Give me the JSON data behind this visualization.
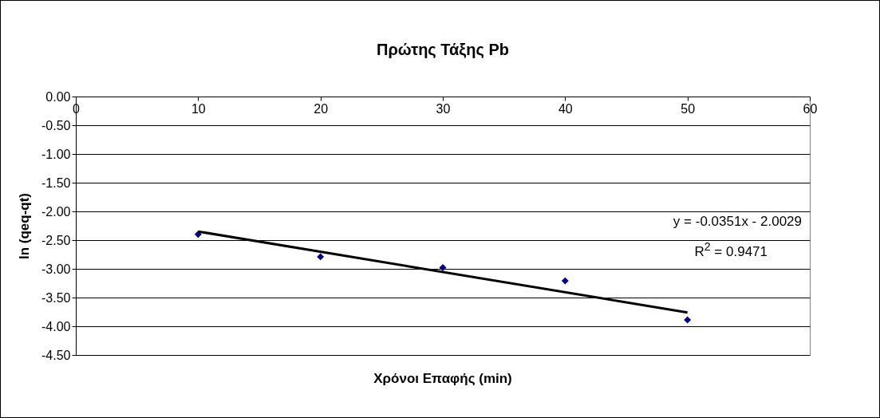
{
  "chart_data": {
    "type": "scatter",
    "title": "Πρώτης Τάξης Pb",
    "xlabel": "Χρόνοι Επαφής (min)",
    "ylabel": "ln (qeq-qt)",
    "x": [
      10,
      20,
      30,
      40,
      50
    ],
    "series": [
      {
        "color": "#000080",
        "marker": "diamond",
        "values": [
          -2.4,
          -2.79,
          -2.98,
          -3.21,
          -3.89
        ]
      },
      {
        "type": "line",
        "color": "#000000",
        "x": [
          10,
          50
        ],
        "values": [
          -2.35,
          -3.76
        ],
        "marker": "none",
        "line_style": "solid"
      }
    ],
    "xlim": [
      0,
      60
    ],
    "xticks": [
      0,
      10,
      20,
      30,
      40,
      50,
      60
    ],
    "ylim": [
      -4.5,
      0
    ],
    "yticks": [
      {
        "value": 0,
        "label": "0.00"
      },
      {
        "value": -0.5,
        "label": "-0.50"
      },
      {
        "value": -1,
        "label": "-1.00"
      },
      {
        "value": -1.5,
        "label": "-1.50"
      },
      {
        "value": -2,
        "label": "-2.00"
      },
      {
        "value": -2.5,
        "label": "-2.50"
      },
      {
        "value": -3,
        "label": "-3.00"
      },
      {
        "value": -3.5,
        "label": "-3.50"
      },
      {
        "value": -4,
        "label": "-4.00"
      },
      {
        "value": -4.5,
        "label": "-4.50"
      }
    ],
    "grid": "y",
    "annotations": [
      "y = -0.0351x - 2.0029",
      "R$^{2}$ = 0.9471"
    ]
  }
}
